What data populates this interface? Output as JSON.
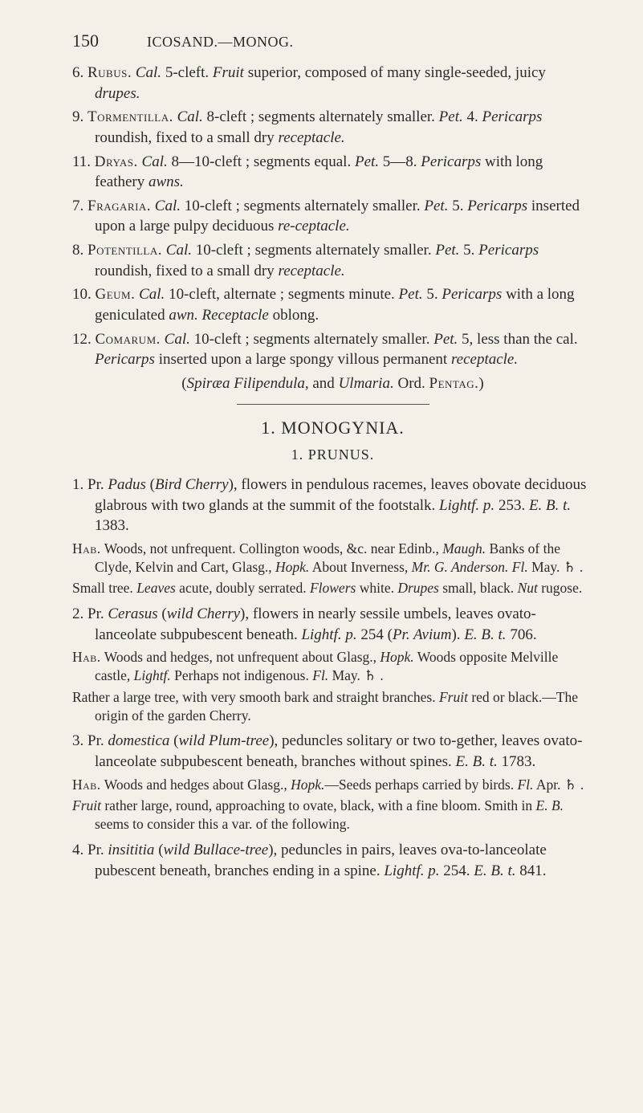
{
  "header": {
    "page_number": "150",
    "running_head": "ICOSAND.—MONOG."
  },
  "entries": [
    {
      "n": "6.",
      "name": "Rubus.",
      "body_a": "Cal.",
      "body_b": " 5-cleft. ",
      "body_c": "Fruit",
      "body_d": " superior, composed of many single-seeded, juicy ",
      "body_e": "drupes."
    },
    {
      "n": "9.",
      "name": "Tormentilla.",
      "body_a": "Cal.",
      "body_b": " 8-cleft ; segments alternately smaller. ",
      "body_c": "Pet.",
      "body_d": " 4. ",
      "body_e": "Pericarps",
      "body_f": " roundish, fixed to a small dry ",
      "body_g": "receptacle."
    },
    {
      "n": "11.",
      "name": "Dryas.",
      "body_a": "Cal.",
      "body_b": " 8—10-cleft ; segments equal. ",
      "body_c": "Pet.",
      "body_d": " 5—8. ",
      "body_e": "Pericarps",
      "body_f": " with long feathery ",
      "body_g": "awns."
    },
    {
      "n": "7.",
      "name": "Fragaria.",
      "body_a": "Cal.",
      "body_b": " 10-cleft ; segments alternately smaller. ",
      "body_c": "Pet.",
      "body_d": " 5. ",
      "body_e": "Pericarps",
      "body_f": " inserted upon a large pulpy deciduous ",
      "body_g": "re-ceptacle."
    },
    {
      "n": "8.",
      "name": "Potentilla.",
      "body_a": "Cal.",
      "body_b": " 10-cleft ; segments alternately smaller. ",
      "body_c": "Pet.",
      "body_d": " 5. ",
      "body_e": "Pericarps",
      "body_f": " roundish, fixed to a small dry ",
      "body_g": "receptacle."
    },
    {
      "n": "10.",
      "name": "Geum.",
      "body_a": "Cal.",
      "body_b": " 10-cleft, alternate ; segments minute. ",
      "body_c": "Pet.",
      "body_d": " 5. ",
      "body_e": "Pericarps",
      "body_f": " with a long geniculated ",
      "body_g": "awn.",
      "body_h": " Receptacle",
      "body_i": " oblong."
    },
    {
      "n": "12.",
      "name": "Comarum.",
      "body_a": "Cal.",
      "body_b": " 10-cleft ; segments alternately smaller. ",
      "body_c": "Pet.",
      "body_d": " 5, less than the cal. ",
      "body_e": "Pericarps",
      "body_f": " inserted upon a large spongy villous permanent ",
      "body_g": "receptacle."
    }
  ],
  "center_note": {
    "a": "(",
    "b": "Spiræa Filipendula,",
    "c": " and ",
    "d": "Ulmaria.",
    "e": " Ord. ",
    "f": "Pentag.",
    "g": ")"
  },
  "section": "1. MONOGYNIA.",
  "subsection": "1. PRUNUS.",
  "species": [
    {
      "num": "1.",
      "line1_a": "Pr. ",
      "line1_b": "Padus",
      "line1_c": " (",
      "line1_d": "Bird Cherry",
      "line1_e": "), flowers in pendulous racemes, leaves obovate deciduous glabrous with two glands at the summit of the footstalk. ",
      "line1_f": "Lightf. p.",
      "line1_g": " 253. ",
      "line1_h": "E. B. t.",
      "line1_i": " 1383.",
      "hab_a": "Hab.",
      "hab_b": " Woods, not unfrequent. Collington woods, &c. near Edinb., ",
      "hab_c": "Maugh.",
      "hab_d": " Banks of the Clyde, Kelvin and Cart, Glasg., ",
      "hab_e": "Hopk.",
      "hab_f": " About Inverness, ",
      "hab_g": "Mr. G. Anderson.",
      "hab_h": " Fl.",
      "hab_i": " May. ♄ .",
      "note_a": "Small tree. ",
      "note_b": "Leaves",
      "note_c": " acute, doubly serrated. ",
      "note_d": "Flowers",
      "note_e": " white. ",
      "note_f": "Drupes",
      "note_g": " small, black. ",
      "note_h": "Nut",
      "note_i": " rugose."
    },
    {
      "num": "2.",
      "line1_a": "Pr. ",
      "line1_b": "Cerasus",
      "line1_c": " (",
      "line1_d": "wild Cherry",
      "line1_e": "), flowers in nearly sessile umbels, leaves ovato-lanceolate subpubescent beneath. ",
      "line1_f": "Lightf. p.",
      "line1_g": " 254 (",
      "line1_h": "Pr. Avium",
      "line1_i": "). ",
      "line1_j": "E. B. t.",
      "line1_k": " 706.",
      "hab_a": "Hab.",
      "hab_b": " Woods and hedges, not unfrequent about Glasg., ",
      "hab_c": "Hopk.",
      "hab_d": " Woods opposite Melville castle, ",
      "hab_e": "Lightf.",
      "hab_f": " Perhaps not indigenous. ",
      "hab_g": "Fl.",
      "hab_h": " May. ♄ .",
      "note_a": "Rather a large tree, with very smooth bark and straight branches. ",
      "note_b": "Fruit",
      "note_c": " red or black.—The origin of the garden Cherry."
    },
    {
      "num": "3.",
      "line1_a": "Pr. ",
      "line1_b": "domestica",
      "line1_c": " (",
      "line1_d": "wild Plum-tree",
      "line1_e": "), peduncles solitary or two to-gether, leaves ovato-lanceolate subpubescent beneath, branches without spines. ",
      "line1_f": "E. B. t.",
      "line1_g": " 1783.",
      "hab_a": "Hab.",
      "hab_b": " Woods and hedges about Glasg., ",
      "hab_c": "Hopk.",
      "hab_d": "—Seeds perhaps carried by birds. ",
      "hab_e": "Fl.",
      "hab_f": " Apr. ♄ .",
      "note_a": "Fruit",
      "note_b": " rather large, round, approaching to ovate, black, with a fine bloom. Smith in ",
      "note_c": "E. B.",
      "note_d": " seems to consider this a var. of the following."
    },
    {
      "num": "4.",
      "line1_a": "Pr. ",
      "line1_b": "insititia",
      "line1_c": " (",
      "line1_d": "wild Bullace-tree",
      "line1_e": "), peduncles in pairs, leaves ova-to-lanceolate pubescent beneath, branches ending in a spine. ",
      "line1_f": "Lightf. p.",
      "line1_g": " 254. ",
      "line1_h": "E. B. t.",
      "line1_i": " 841."
    }
  ]
}
